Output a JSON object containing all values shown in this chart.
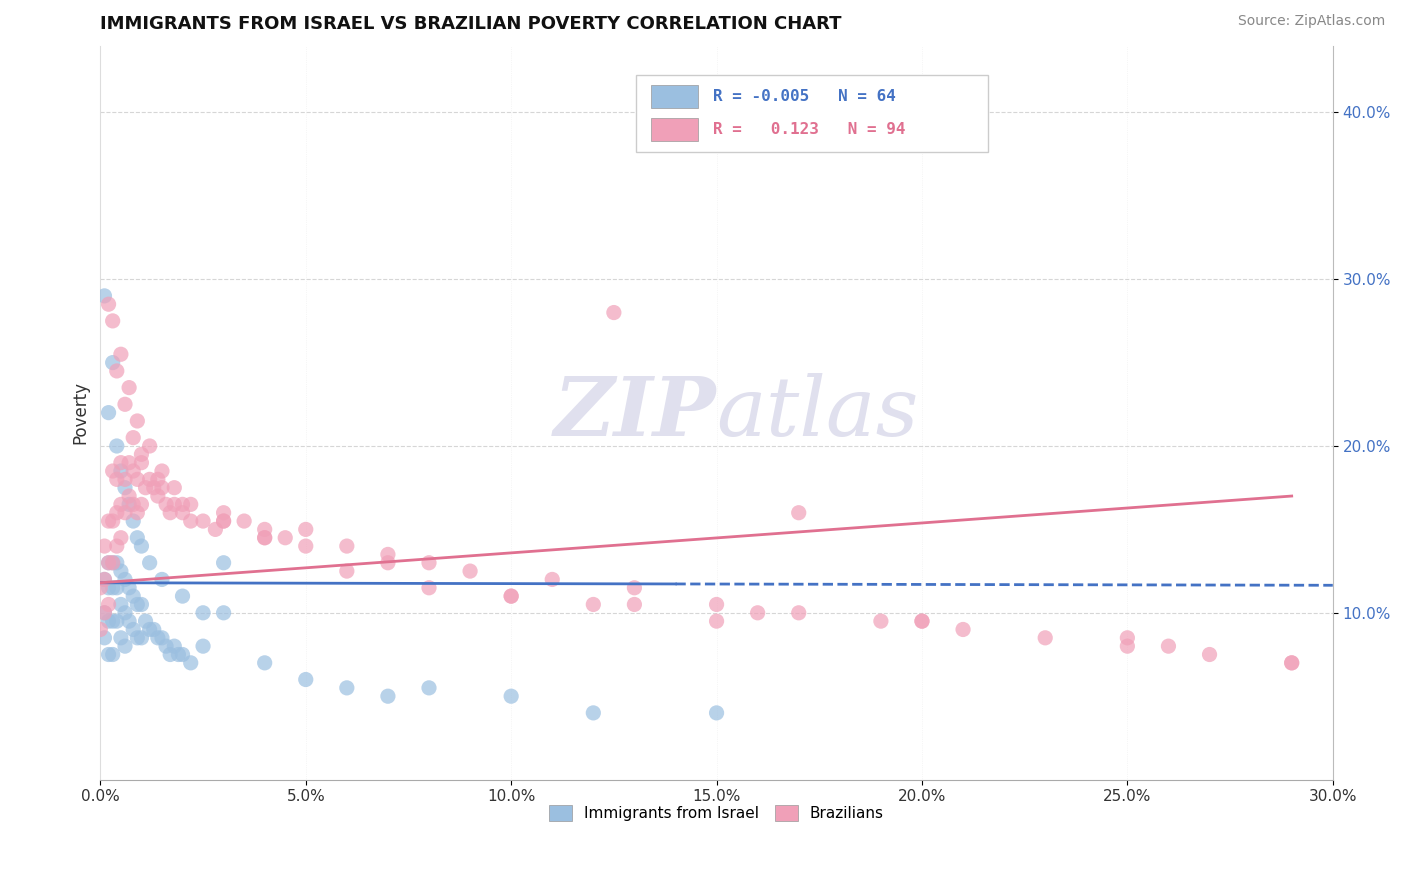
{
  "title": "IMMIGRANTS FROM ISRAEL VS BRAZILIAN POVERTY CORRELATION CHART",
  "source": "Source: ZipAtlas.com",
  "ylabel": "Poverty",
  "ytick_vals": [
    0.1,
    0.2,
    0.3,
    0.4
  ],
  "ytick_labels": [
    "10.0%",
    "20.0%",
    "30.0%",
    "40.0%"
  ],
  "xlim": [
    0.0,
    0.3
  ],
  "ylim": [
    0.0,
    0.44
  ],
  "legend_label1": "Immigrants from Israel",
  "legend_label2": "Brazilians",
  "R1": -0.005,
  "N1": 64,
  "R2": 0.123,
  "N2": 94,
  "color_blue": "#9bbfe0",
  "color_pink": "#f0a0b8",
  "color_blue_line": "#4472c4",
  "color_pink_line": "#e07090",
  "watermark_color": "#e0e0ee",
  "blue_points_x": [
    0.001,
    0.001,
    0.001,
    0.002,
    0.002,
    0.002,
    0.002,
    0.003,
    0.003,
    0.003,
    0.003,
    0.004,
    0.004,
    0.004,
    0.005,
    0.005,
    0.005,
    0.006,
    0.006,
    0.006,
    0.007,
    0.007,
    0.008,
    0.008,
    0.009,
    0.009,
    0.01,
    0.01,
    0.011,
    0.012,
    0.013,
    0.014,
    0.015,
    0.016,
    0.017,
    0.018,
    0.019,
    0.02,
    0.022,
    0.025,
    0.03,
    0.04,
    0.06,
    0.08,
    0.1,
    0.12,
    0.15,
    0.001,
    0.002,
    0.003,
    0.004,
    0.005,
    0.006,
    0.007,
    0.008,
    0.009,
    0.01,
    0.012,
    0.015,
    0.02,
    0.025,
    0.03,
    0.05,
    0.07
  ],
  "blue_points_y": [
    0.12,
    0.1,
    0.085,
    0.13,
    0.115,
    0.095,
    0.075,
    0.13,
    0.115,
    0.095,
    0.075,
    0.13,
    0.115,
    0.095,
    0.125,
    0.105,
    0.085,
    0.12,
    0.1,
    0.08,
    0.115,
    0.095,
    0.11,
    0.09,
    0.105,
    0.085,
    0.105,
    0.085,
    0.095,
    0.09,
    0.09,
    0.085,
    0.085,
    0.08,
    0.075,
    0.08,
    0.075,
    0.075,
    0.07,
    0.08,
    0.13,
    0.07,
    0.055,
    0.055,
    0.05,
    0.04,
    0.04,
    0.29,
    0.22,
    0.25,
    0.2,
    0.185,
    0.175,
    0.165,
    0.155,
    0.145,
    0.14,
    0.13,
    0.12,
    0.11,
    0.1,
    0.1,
    0.06,
    0.05
  ],
  "pink_points_x": [
    0.0,
    0.0,
    0.001,
    0.001,
    0.001,
    0.002,
    0.002,
    0.002,
    0.003,
    0.003,
    0.003,
    0.004,
    0.004,
    0.004,
    0.005,
    0.005,
    0.005,
    0.006,
    0.006,
    0.007,
    0.007,
    0.008,
    0.008,
    0.009,
    0.009,
    0.01,
    0.01,
    0.011,
    0.012,
    0.013,
    0.014,
    0.015,
    0.016,
    0.017,
    0.018,
    0.02,
    0.022,
    0.025,
    0.028,
    0.03,
    0.035,
    0.04,
    0.045,
    0.05,
    0.06,
    0.07,
    0.08,
    0.09,
    0.11,
    0.13,
    0.15,
    0.17,
    0.19,
    0.21,
    0.23,
    0.25,
    0.27,
    0.29,
    0.003,
    0.005,
    0.007,
    0.009,
    0.012,
    0.015,
    0.018,
    0.022,
    0.03,
    0.04,
    0.06,
    0.08,
    0.1,
    0.12,
    0.15,
    0.2,
    0.25,
    0.002,
    0.004,
    0.006,
    0.008,
    0.01,
    0.014,
    0.02,
    0.03,
    0.05,
    0.07,
    0.1,
    0.13,
    0.16,
    0.2,
    0.26,
    0.29,
    0.17,
    0.125,
    0.04
  ],
  "pink_points_y": [
    0.115,
    0.09,
    0.14,
    0.12,
    0.1,
    0.155,
    0.13,
    0.105,
    0.185,
    0.155,
    0.13,
    0.18,
    0.16,
    0.14,
    0.19,
    0.165,
    0.145,
    0.18,
    0.16,
    0.19,
    0.17,
    0.185,
    0.165,
    0.18,
    0.16,
    0.19,
    0.165,
    0.175,
    0.18,
    0.175,
    0.17,
    0.175,
    0.165,
    0.16,
    0.165,
    0.16,
    0.155,
    0.155,
    0.15,
    0.16,
    0.155,
    0.15,
    0.145,
    0.15,
    0.14,
    0.135,
    0.13,
    0.125,
    0.12,
    0.115,
    0.105,
    0.1,
    0.095,
    0.09,
    0.085,
    0.08,
    0.075,
    0.07,
    0.275,
    0.255,
    0.235,
    0.215,
    0.2,
    0.185,
    0.175,
    0.165,
    0.155,
    0.145,
    0.125,
    0.115,
    0.11,
    0.105,
    0.095,
    0.095,
    0.085,
    0.285,
    0.245,
    0.225,
    0.205,
    0.195,
    0.18,
    0.165,
    0.155,
    0.14,
    0.13,
    0.11,
    0.105,
    0.1,
    0.095,
    0.08,
    0.07,
    0.16,
    0.28,
    0.145
  ]
}
